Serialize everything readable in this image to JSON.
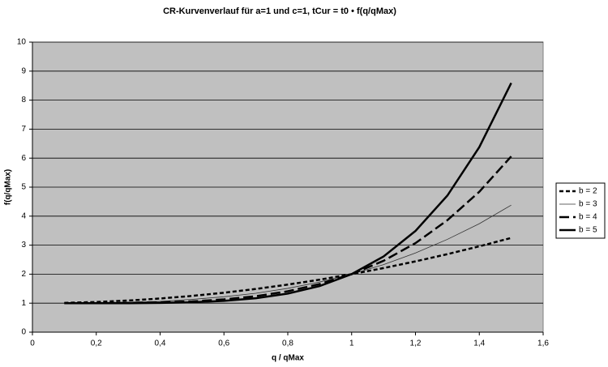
{
  "chart_data": {
    "type": "line",
    "title": "CR-Kurvenverlauf für a=1 und c=1, tCur = t0 • f(q/qMax)",
    "x_label": "q / qMax",
    "y_label": "f(q/qMax)",
    "x": [
      0.1,
      0.2,
      0.3,
      0.4,
      0.5,
      0.6,
      0.7,
      0.8,
      0.9,
      1.0,
      1.1,
      1.2,
      1.3,
      1.4,
      1.5
    ],
    "series": [
      {
        "name": "b = 2",
        "color": "#000000",
        "line_style": "dotted",
        "line_width": 2.5,
        "values": [
          1.01,
          1.04,
          1.09,
          1.16,
          1.25,
          1.36,
          1.49,
          1.64,
          1.81,
          2,
          2.21,
          2.44,
          2.69,
          2.96,
          3.25
        ]
      },
      {
        "name": "b = 3",
        "color": "#333333",
        "line_style": "solid",
        "line_width": 0.8,
        "values": [
          1.0,
          1.01,
          1.03,
          1.06,
          1.13,
          1.22,
          1.34,
          1.51,
          1.73,
          2,
          2.33,
          2.73,
          3.2,
          3.74,
          4.38
        ]
      },
      {
        "name": "b = 4",
        "color": "#000000",
        "line_style": "dashed",
        "line_width": 2.5,
        "values": [
          1.0,
          1.0,
          1.01,
          1.03,
          1.06,
          1.13,
          1.24,
          1.41,
          1.66,
          2,
          2.46,
          3.07,
          3.86,
          4.84,
          6.06
        ]
      },
      {
        "name": "b = 5",
        "color": "#000000",
        "line_style": "solid",
        "line_width": 2.5,
        "values": [
          1.0,
          1.0,
          1.0,
          1.01,
          1.03,
          1.08,
          1.17,
          1.33,
          1.59,
          2,
          2.61,
          3.49,
          4.71,
          6.38,
          8.59
        ]
      }
    ],
    "xlim": [
      0,
      1.6
    ],
    "xticks": [
      0,
      {
        "value": 0.2,
        "label": "0,2"
      },
      {
        "value": 0.4,
        "label": "0,4"
      },
      {
        "value": 0.6,
        "label": "0,6"
      },
      {
        "value": 0.8,
        "label": "0,8"
      },
      1,
      {
        "value": 1.2,
        "label": "1,2"
      },
      {
        "value": 1.4,
        "label": "1,4"
      },
      {
        "value": 1.6,
        "label": "1,6"
      }
    ],
    "ylim": [
      0,
      10
    ],
    "yticks": [
      0,
      1,
      2,
      3,
      4,
      5,
      6,
      7,
      8,
      9,
      10
    ],
    "grid": true,
    "plot_background": "#c0c0c0",
    "legend": "right"
  }
}
